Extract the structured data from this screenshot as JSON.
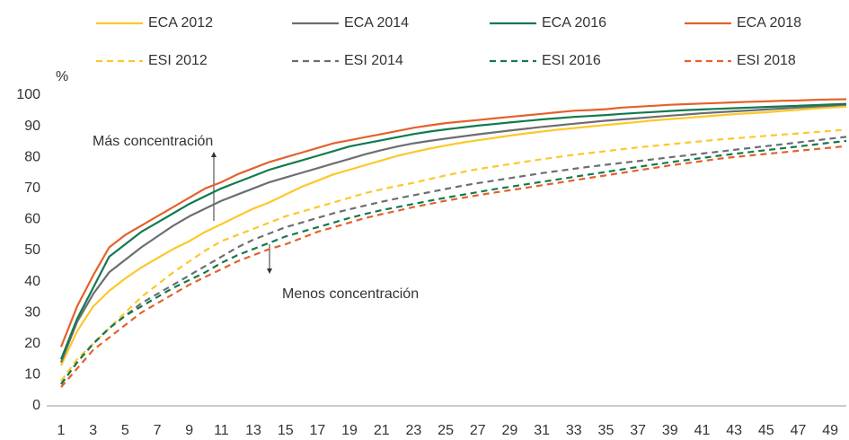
{
  "chart_data": {
    "type": "line",
    "y_label": "%",
    "annotations": [
      "Más concentración",
      "Menos concentración"
    ],
    "x": [
      1,
      2,
      3,
      4,
      5,
      6,
      7,
      8,
      9,
      10,
      11,
      12,
      13,
      14,
      15,
      16,
      17,
      18,
      19,
      20,
      21,
      22,
      23,
      24,
      25,
      26,
      27,
      28,
      29,
      30,
      31,
      32,
      33,
      34,
      35,
      36,
      37,
      38,
      39,
      40,
      41,
      42,
      43,
      44,
      45,
      46,
      47,
      48,
      49,
      50
    ],
    "xlim": [
      1,
      50
    ],
    "xticks": [
      1,
      3,
      5,
      7,
      9,
      11,
      13,
      15,
      17,
      19,
      21,
      23,
      25,
      27,
      29,
      31,
      33,
      35,
      37,
      39,
      41,
      43,
      45,
      47,
      49
    ],
    "ylim": [
      0,
      100
    ],
    "yticks": [
      0,
      10,
      20,
      30,
      40,
      50,
      60,
      70,
      80,
      90,
      100
    ],
    "grid": false,
    "series": [
      {
        "name": "ECA 2012",
        "color": "#fcc82a",
        "style": "solid",
        "values": [
          13,
          24,
          32,
          37,
          41,
          44.5,
          47.5,
          50.5,
          53,
          56,
          58.5,
          61,
          63.5,
          65.5,
          68,
          70.5,
          72.5,
          74.5,
          76,
          77.5,
          79,
          80.5,
          81.7,
          82.8,
          83.8,
          84.7,
          85.5,
          86.2,
          87,
          87.7,
          88.3,
          88.9,
          89.4,
          89.9,
          90.4,
          90.9,
          91.4,
          91.9,
          92.3,
          92.7,
          93.1,
          93.5,
          93.9,
          94.2,
          94.5,
          94.9,
          95.3,
          95.7,
          96,
          96.3
        ]
      },
      {
        "name": "ECA 2014",
        "color": "#6d6e71",
        "style": "solid",
        "values": [
          14,
          27,
          36,
          43,
          47,
          51,
          54.5,
          58,
          61,
          63.5,
          66,
          68,
          70,
          72,
          73.5,
          75,
          76.5,
          78,
          79.5,
          81,
          82.3,
          83.5,
          84.5,
          85.3,
          86,
          86.7,
          87.4,
          88,
          88.6,
          89.2,
          89.8,
          90.3,
          90.8,
          91.3,
          91.8,
          92.2,
          92.6,
          93,
          93.4,
          93.8,
          94.2,
          94.5,
          94.8,
          95.1,
          95.4,
          95.7,
          96,
          96.3,
          96.6,
          96.9
        ]
      },
      {
        "name": "ECA 2016",
        "color": "#127a4e",
        "style": "solid",
        "values": [
          15,
          28,
          38,
          48,
          52,
          56,
          59,
          62,
          65,
          67.5,
          70,
          72,
          74,
          76,
          77.5,
          79,
          80.5,
          82,
          83.5,
          84.5,
          85.5,
          86.5,
          87.5,
          88.3,
          89,
          89.6,
          90.2,
          90.7,
          91.2,
          91.7,
          92.2,
          92.6,
          93,
          93.3,
          93.6,
          94,
          94.3,
          94.6,
          94.9,
          95.2,
          95.4,
          95.6,
          95.8,
          96,
          96.2,
          96.4,
          96.6,
          96.8,
          97,
          97.2
        ]
      },
      {
        "name": "ECA 2018",
        "color": "#e4612b",
        "style": "solid",
        "values": [
          19,
          32,
          42,
          51,
          55,
          58,
          61,
          64,
          67,
          70,
          72,
          74.5,
          76.5,
          78.5,
          80,
          81.5,
          83,
          84.5,
          85.5,
          86.5,
          87.5,
          88.5,
          89.5,
          90.3,
          91,
          91.5,
          92,
          92.5,
          93,
          93.5,
          94,
          94.5,
          95,
          95.2,
          95.5,
          96,
          96.3,
          96.6,
          96.9,
          97.1,
          97.3,
          97.5,
          97.7,
          97.9,
          98,
          98.2,
          98.3,
          98.5,
          98.6,
          98.7
        ]
      },
      {
        "name": "ESI 2012",
        "color": "#fcc82a",
        "style": "dashed",
        "values": [
          8,
          15,
          20,
          25,
          30,
          35,
          39,
          43,
          46.5,
          50,
          53,
          55,
          57,
          59,
          61,
          62.5,
          64,
          65.5,
          67,
          68.5,
          69.7,
          70.8,
          71.8,
          73,
          74.2,
          75.2,
          76.2,
          77,
          77.8,
          78.6,
          79.4,
          80.1,
          80.8,
          81.4,
          82,
          82.6,
          83.2,
          83.7,
          84.2,
          84.7,
          85.2,
          85.7,
          86.1,
          86.5,
          86.9,
          87.3,
          87.7,
          88.1,
          88.5,
          88.9
        ]
      },
      {
        "name": "ESI 2014",
        "color": "#6d6e71",
        "style": "dashed",
        "values": [
          7,
          14,
          20,
          25,
          29,
          33,
          36,
          39,
          42,
          45,
          48,
          51,
          53.5,
          55.5,
          57.5,
          59,
          60.5,
          62,
          63.3,
          64.5,
          65.7,
          66.8,
          67.8,
          68.8,
          69.8,
          70.8,
          71.7,
          72.5,
          73.3,
          74.1,
          74.9,
          75.6,
          76.3,
          77,
          77.6,
          78.2,
          78.8,
          79.4,
          80,
          80.6,
          81.2,
          81.8,
          82.4,
          83,
          83.6,
          84.2,
          84.8,
          85.4,
          86,
          86.6
        ]
      },
      {
        "name": "ESI 2016",
        "color": "#127a4e",
        "style": "dashed",
        "values": [
          7,
          14,
          20,
          25,
          29,
          32,
          35,
          38,
          40.5,
          43,
          46,
          48.5,
          50.5,
          52.5,
          54.5,
          56,
          57.5,
          59,
          60.5,
          61.8,
          63,
          64,
          65,
          66,
          67,
          67.9,
          68.8,
          69.7,
          70.5,
          71.3,
          72.1,
          72.9,
          73.7,
          74.5,
          75.3,
          76.1,
          76.9,
          77.7,
          78.4,
          79.1,
          79.8,
          80.5,
          81.1,
          81.7,
          82.3,
          82.9,
          83.5,
          84.1,
          84.7,
          85.3
        ]
      },
      {
        "name": "ESI 2018",
        "color": "#e4612b",
        "style": "dashed",
        "values": [
          6,
          12,
          18,
          22,
          26,
          30,
          33,
          36,
          39,
          41.5,
          44,
          46.5,
          48.5,
          50.5,
          52,
          54,
          56,
          57.5,
          59,
          60.5,
          61.7,
          62.8,
          64,
          65,
          66,
          66.9,
          67.8,
          68.6,
          69.4,
          70.2,
          71,
          71.8,
          72.6,
          73.4,
          74.2,
          75,
          75.8,
          76.6,
          77.4,
          78.1,
          78.8,
          79.5,
          80.1,
          80.6,
          81.1,
          81.6,
          82.1,
          82.6,
          83.1,
          83.6
        ]
      }
    ]
  }
}
